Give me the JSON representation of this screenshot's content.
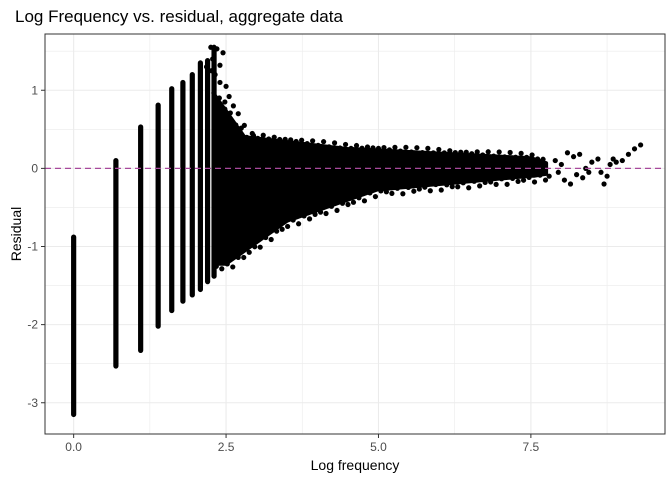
{
  "chart_data": {
    "type": "scatter",
    "title": "Log Frequency vs. residual, aggregate data",
    "xlabel": "Log frequency",
    "ylabel": "Residual",
    "xlim": [
      -0.47,
      9.7
    ],
    "ylim": [
      -3.4,
      1.72
    ],
    "x_ticks": [
      0.0,
      2.5,
      5.0,
      7.5
    ],
    "x_tick_labels": [
      "0.0",
      "2.5",
      "5.0",
      "7.5"
    ],
    "y_ticks": [
      -3,
      -2,
      -1,
      0,
      1
    ],
    "y_tick_labels": [
      "-3",
      "-2",
      "-1",
      "0",
      "1"
    ],
    "grid": true,
    "reference_line": {
      "y": 0,
      "style": "dashed",
      "color": "#a7489b"
    },
    "point_color": "#000000",
    "columns": [
      {
        "x": 0.0,
        "y_min": -3.15,
        "y_max": -0.88
      },
      {
        "x": 0.693,
        "y_min": -2.53,
        "y_max": 0.1
      },
      {
        "x": 1.099,
        "y_min": -2.33,
        "y_max": 0.53
      },
      {
        "x": 1.386,
        "y_min": -2.02,
        "y_max": 0.81
      },
      {
        "x": 1.609,
        "y_min": -1.82,
        "y_max": 1.02
      },
      {
        "x": 1.792,
        "y_min": -1.7,
        "y_max": 1.1
      },
      {
        "x": 1.946,
        "y_min": -1.62,
        "y_max": 1.2
      },
      {
        "x": 2.079,
        "y_min": -1.55,
        "y_max": 1.35
      },
      {
        "x": 2.197,
        "y_min": -1.45,
        "y_max": 1.38
      },
      {
        "x": 2.303,
        "y_min": -1.38,
        "y_max": 1.55
      }
    ],
    "upper_outliers": [
      [
        2.25,
        1.55
      ],
      [
        2.35,
        1.53
      ],
      [
        2.28,
        1.4
      ],
      [
        2.18,
        1.3
      ],
      [
        2.26,
        1.25
      ],
      [
        2.4,
        1.32
      ],
      [
        2.45,
        1.48
      ],
      [
        2.32,
        1.2
      ],
      [
        2.4,
        1.1
      ],
      [
        2.5,
        1.05
      ],
      [
        2.55,
        0.92
      ],
      [
        2.48,
        0.85
      ],
      [
        2.62,
        0.8
      ],
      [
        2.7,
        0.7
      ],
      [
        2.6,
        0.6
      ],
      [
        2.8,
        0.55
      ],
      [
        2.95,
        0.42
      ],
      [
        3.1,
        0.38
      ],
      [
        3.3,
        0.35
      ],
      [
        3.5,
        0.32
      ],
      [
        3.7,
        0.3
      ],
      [
        4.0,
        0.25
      ],
      [
        4.5,
        0.22
      ],
      [
        5.0,
        0.22
      ],
      [
        5.5,
        0.2
      ],
      [
        6.0,
        0.18
      ],
      [
        6.5,
        0.15
      ],
      [
        7.0,
        0.13
      ]
    ],
    "tail_points": [
      [
        7.6,
        0.05
      ],
      [
        7.7,
        -0.05
      ],
      [
        7.8,
        -0.1
      ],
      [
        7.9,
        0.1
      ],
      [
        7.95,
        -0.05
      ],
      [
        8.0,
        0.05
      ],
      [
        8.05,
        -0.15
      ],
      [
        8.1,
        0.2
      ],
      [
        8.15,
        -0.2
      ],
      [
        8.2,
        0.15
      ],
      [
        8.25,
        -0.08
      ],
      [
        8.3,
        0.18
      ],
      [
        8.35,
        -0.12
      ],
      [
        8.4,
        0.0
      ],
      [
        8.45,
        -0.05
      ],
      [
        8.5,
        0.08
      ],
      [
        8.6,
        0.12
      ],
      [
        8.65,
        -0.05
      ],
      [
        8.7,
        -0.2
      ],
      [
        8.75,
        -0.1
      ],
      [
        8.8,
        0.05
      ],
      [
        8.85,
        0.12
      ],
      [
        8.9,
        0.08
      ],
      [
        9.0,
        0.1
      ],
      [
        9.1,
        0.18
      ],
      [
        9.2,
        0.25
      ],
      [
        9.3,
        0.3
      ]
    ]
  }
}
